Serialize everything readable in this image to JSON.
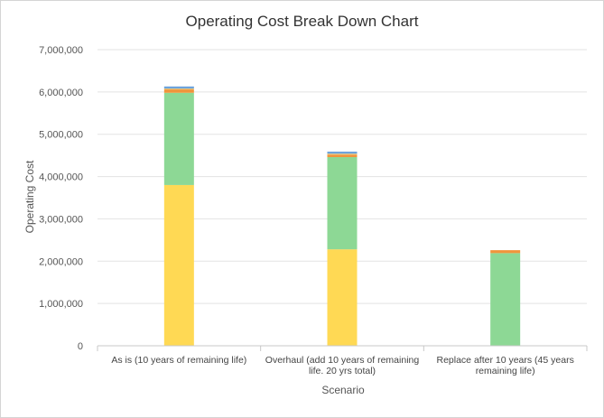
{
  "chart_data": {
    "type": "bar",
    "stacked": true,
    "title": "Operating Cost Break Down Chart",
    "xlabel": "Scenario",
    "ylabel": "Operating Cost",
    "ylim": [
      0,
      7000000
    ],
    "yticks": [
      0,
      1000000,
      2000000,
      3000000,
      4000000,
      5000000,
      6000000,
      7000000
    ],
    "ytick_labels": [
      "0",
      "1,000,000",
      "2,000,000",
      "3,000,000",
      "4,000,000",
      "5,000,000",
      "6,000,000",
      "7,000,000"
    ],
    "grid": true,
    "legend": "none",
    "categories": [
      [
        "As is (10 years of remaining life)"
      ],
      [
        "Overhaul (add 10 years of remaining",
        "life. 20 yrs total)"
      ],
      [
        "Replace after 10 years (45 years",
        "remaining life)"
      ]
    ],
    "series": [
      {
        "color": "#ffd954",
        "values": [
          3800000,
          2280000,
          0
        ]
      },
      {
        "color": "#8dd895",
        "values": [
          2180000,
          2180000,
          2190000
        ]
      },
      {
        "color": "#f0953c",
        "values": [
          80000,
          60000,
          70000
        ]
      },
      {
        "color": "#f3c96a",
        "values": [
          20000,
          20000,
          0
        ]
      },
      {
        "color": "#6ea3dc",
        "values": [
          50000,
          50000,
          0
        ]
      }
    ]
  }
}
